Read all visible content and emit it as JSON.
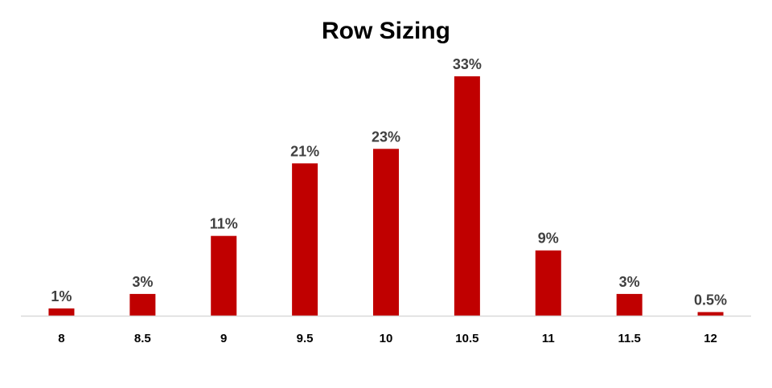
{
  "chart_data": {
    "type": "bar",
    "title": "Row Sizing",
    "xlabel": "",
    "ylabel": "",
    "categories": [
      "8",
      "8.5",
      "9",
      "9.5",
      "10",
      "10.5",
      "11",
      "11.5",
      "12"
    ],
    "values": [
      1,
      3,
      11,
      21,
      23,
      33,
      9,
      3,
      0.5
    ],
    "value_labels": [
      "1%",
      "3%",
      "11%",
      "21%",
      "23%",
      "33%",
      "9%",
      "3%",
      "0.5%"
    ],
    "ylim": [
      0,
      33
    ],
    "grid": false,
    "legend": "none",
    "colors": {
      "bar": "#C00000",
      "axis": "#D9D9D9",
      "label": "#404040"
    }
  }
}
